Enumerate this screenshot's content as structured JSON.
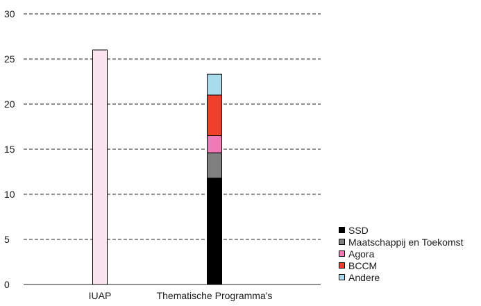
{
  "chart_data": {
    "type": "bar",
    "stacked": true,
    "categories": [
      "IUAP",
      "Thematische Programma's"
    ],
    "series": [
      {
        "name": "IUAP",
        "color": "#fce4ef",
        "values": [
          26,
          0
        ],
        "in_legend": false
      },
      {
        "name": "SSD",
        "color": "#000000",
        "values": [
          0,
          11.8
        ],
        "in_legend": true
      },
      {
        "name": "Maatschappij en Toekomst",
        "color": "#808080",
        "values": [
          0,
          2.8
        ],
        "in_legend": true
      },
      {
        "name": "Agora",
        "color": "#f07ab8",
        "values": [
          0,
          1.9
        ],
        "in_legend": true
      },
      {
        "name": "BCCM",
        "color": "#f0402a",
        "values": [
          0,
          4.5
        ],
        "in_legend": true
      },
      {
        "name": "Andere",
        "color": "#a8dcea",
        "values": [
          0,
          2.3
        ],
        "in_legend": true
      }
    ],
    "yticks": [
      0,
      5,
      10,
      15,
      20,
      25,
      30
    ],
    "ylim": [
      0,
      30
    ],
    "grid": true,
    "legend_position": "bottom-right",
    "title": "",
    "xlabel": "",
    "ylabel": ""
  }
}
